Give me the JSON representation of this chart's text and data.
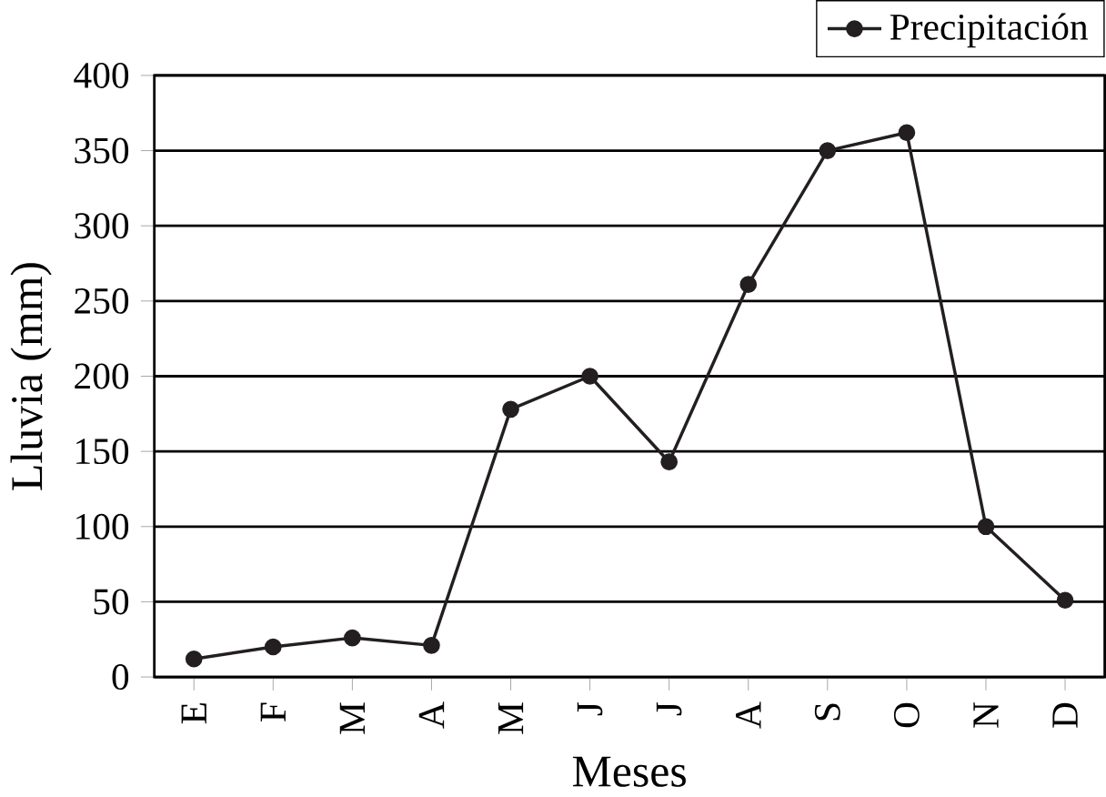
{
  "chart_data": {
    "type": "line",
    "xlabel": "Meses",
    "ylabel": "Lluvia (mm)",
    "categories": [
      "E",
      "F",
      "M",
      "A",
      "M",
      "J",
      "J",
      "A",
      "S",
      "O",
      "N",
      "D"
    ],
    "series": [
      {
        "name": "Precipitación",
        "color": "#231f20",
        "values": [
          12,
          20,
          26,
          21,
          178,
          200,
          143,
          261,
          350,
          362,
          100,
          51
        ]
      }
    ],
    "ylim": [
      0,
      400
    ],
    "yticks": [
      0,
      50,
      100,
      150,
      200,
      250,
      300,
      350,
      400
    ],
    "grid": "y",
    "legend": "top right",
    "marker": "circle",
    "line_style": "solid"
  }
}
